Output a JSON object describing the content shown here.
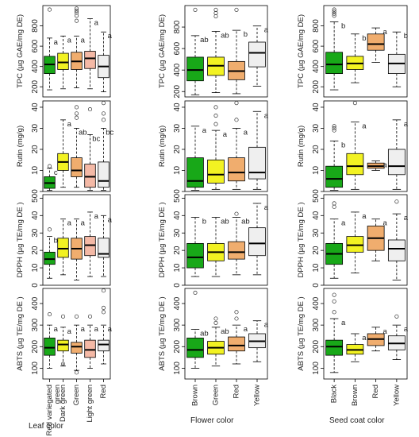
{
  "colors": {
    "green": "#18a818",
    "yellow": "#f2f222",
    "orange": "#f0ad6e",
    "pink": "#f4b9a6",
    "white": "#efefef"
  },
  "group_captions": [
    "Leaf color",
    "Flower color",
    "Seed coat color"
  ],
  "chart_data": [
    {
      "id": "leaf-tpc",
      "type": "box",
      "ylabel": "TPC (µg GAE/mg DE)",
      "ylim": [
        100,
        1000
      ],
      "yticks": [
        200,
        400,
        600,
        800
      ],
      "categories": [
        "Red variegated green",
        "Dark green",
        "Green",
        "Light green",
        "Red"
      ],
      "category_labels": [
        [
          "Red variegated",
          "green"
        ],
        [
          "Dark green"
        ],
        [
          "Green"
        ],
        [
          "Light green"
        ],
        [
          "Red"
        ]
      ],
      "box_colors": [
        "green",
        "yellow",
        "orange",
        "pink",
        "white"
      ],
      "boxes": [
        {
          "whislo": 170,
          "q1": 330,
          "med": 420,
          "q3": 500,
          "whishi": 680,
          "fliers": [
            960
          ],
          "letter": "a"
        },
        {
          "whislo": 180,
          "q1": 370,
          "med": 440,
          "q3": 530,
          "whishi": 700,
          "fliers": [],
          "letter": "a"
        },
        {
          "whislo": 190,
          "q1": 370,
          "med": 450,
          "q3": 540,
          "whishi": 700,
          "fliers": [
            850,
            900,
            930,
            950,
            970
          ],
          "letter": "a"
        },
        {
          "whislo": 180,
          "q1": 380,
          "med": 480,
          "q3": 550,
          "whishi": 870,
          "fliers": [],
          "letter": "a"
        },
        {
          "whislo": 150,
          "q1": 290,
          "med": 400,
          "q3": 510,
          "whishi": 740,
          "fliers": [],
          "letter": "a"
        }
      ]
    },
    {
      "id": "leaf-rutin",
      "type": "box",
      "ylabel": "Rutin (mg/g)",
      "ylim": [
        0,
        43
      ],
      "yticks": [
        0,
        10,
        20,
        30,
        40
      ],
      "categories": [
        "Red variegated green",
        "Dark green",
        "Green",
        "Light green",
        "Red"
      ],
      "box_colors": [
        "green",
        "yellow",
        "orange",
        "pink",
        "white"
      ],
      "boxes": [
        {
          "whislo": 0.5,
          "q1": 1.5,
          "med": 4,
          "q3": 7,
          "whishi": 11,
          "fliers": [
            12
          ],
          "letter": "c"
        },
        {
          "whislo": 2,
          "q1": 10,
          "med": 14,
          "q3": 18,
          "whishi": 34,
          "fliers": [],
          "letter": "a"
        },
        {
          "whislo": 2,
          "q1": 7,
          "med": 10,
          "q3": 16,
          "whishi": 30,
          "fliers": [
            35,
            37,
            40
          ],
          "letter": "ab"
        },
        {
          "whislo": 0.5,
          "q1": 2,
          "med": 7,
          "q3": 13,
          "whishi": 27,
          "fliers": [
            39
          ],
          "letter": "bc"
        },
        {
          "whislo": 0.5,
          "q1": 2,
          "med": 5,
          "q3": 14,
          "whishi": 30,
          "fliers": [
            34,
            37,
            42
          ],
          "letter": "bc"
        }
      ]
    },
    {
      "id": "leaf-dpph",
      "type": "box",
      "ylabel": "DPPH (µg TE/mg DE )",
      "ylim": [
        0,
        52
      ],
      "yticks": [
        0,
        10,
        20,
        30,
        40,
        50
      ],
      "categories": [
        "Red variegated green",
        "Dark green",
        "Green",
        "Light green",
        "Red"
      ],
      "box_colors": [
        "green",
        "yellow",
        "orange",
        "pink",
        "white"
      ],
      "boxes": [
        {
          "whislo": 4,
          "q1": 12,
          "med": 15,
          "q3": 19,
          "whishi": 28,
          "fliers": [
            32
          ],
          "letter": "b"
        },
        {
          "whislo": 6,
          "q1": 16,
          "med": 21,
          "q3": 27,
          "whishi": 38,
          "fliers": [],
          "letter": "a"
        },
        {
          "whislo": 3,
          "q1": 15,
          "med": 21,
          "q3": 27,
          "whishi": 38,
          "fliers": [],
          "letter": "a"
        },
        {
          "whislo": 5,
          "q1": 17,
          "med": 23,
          "q3": 28,
          "whishi": 42,
          "fliers": [],
          "letter": "a"
        },
        {
          "whislo": 5,
          "q1": 16,
          "med": 18,
          "q3": 27,
          "whishi": 40,
          "fliers": [],
          "letter": "a"
        }
      ]
    },
    {
      "id": "leaf-abts",
      "type": "box",
      "ylabel": "ABTS (µg TE/mg DE )",
      "ylim": [
        50,
        470
      ],
      "yticks": [
        100,
        200,
        300,
        400
      ],
      "categories": [
        "Red variegated green",
        "Dark green",
        "Green",
        "Light green",
        "Red"
      ],
      "box_colors": [
        "green",
        "yellow",
        "orange",
        "pink",
        "white"
      ],
      "boxes": [
        {
          "whislo": 100,
          "q1": 160,
          "med": 195,
          "q3": 240,
          "whishi": 300,
          "fliers": [
            350
          ],
          "letter": "a"
        },
        {
          "whislo": 110,
          "q1": 180,
          "med": 210,
          "q3": 230,
          "whishi": 290,
          "fliers": [
            120,
            340
          ],
          "letter": "a"
        },
        {
          "whislo": 90,
          "q1": 170,
          "med": 200,
          "q3": 220,
          "whishi": 300,
          "fliers": [
            80,
            340
          ],
          "letter": "a"
        },
        {
          "whislo": 100,
          "q1": 150,
          "med": 185,
          "q3": 230,
          "whishi": 300,
          "fliers": [
            340
          ],
          "letter": "a"
        },
        {
          "whislo": 120,
          "q1": 180,
          "med": 210,
          "q3": 230,
          "whishi": 300,
          "fliers": [
            360,
            380,
            460
          ],
          "letter": "a"
        }
      ]
    },
    {
      "id": "flower-tpc",
      "type": "box",
      "ylabel": "TPC (µg GAE/mg DE)",
      "ylim": [
        150,
        1000
      ],
      "yticks": [
        200,
        400,
        600,
        800
      ],
      "categories": [
        "Brown",
        "Green",
        "Red",
        "Yellow"
      ],
      "category_labels": [
        [
          "Brown"
        ],
        [
          "Green"
        ],
        [
          "Red"
        ],
        [
          "Yellow"
        ]
      ],
      "box_colors": [
        "green",
        "yellow",
        "orange",
        "white"
      ],
      "boxes": [
        {
          "whislo": 170,
          "q1": 300,
          "med": 400,
          "q3": 520,
          "whishi": 720,
          "fliers": [
            960
          ],
          "letter": "ab"
        },
        {
          "whislo": 190,
          "q1": 350,
          "med": 440,
          "q3": 520,
          "whishi": 760,
          "fliers": [
            900,
            930,
            960
          ],
          "letter": "ab"
        },
        {
          "whislo": 180,
          "q1": 310,
          "med": 390,
          "q3": 480,
          "whishi": 770,
          "fliers": [
            960
          ],
          "letter": "b"
        },
        {
          "whislo": 250,
          "q1": 430,
          "med": 560,
          "q3": 660,
          "whishi": 810,
          "fliers": [],
          "letter": "a"
        }
      ]
    },
    {
      "id": "flower-rutin",
      "type": "box",
      "ylabel": "Rutin (mg/g)",
      "ylim": [
        0,
        43
      ],
      "yticks": [
        0,
        10,
        20,
        30,
        40
      ],
      "categories": [
        "Brown",
        "Green",
        "Red",
        "Yellow"
      ],
      "box_colors": [
        "green",
        "yellow",
        "orange",
        "white"
      ],
      "boxes": [
        {
          "whislo": 0.5,
          "q1": 2,
          "med": 5,
          "q3": 16,
          "whishi": 31,
          "fliers": [],
          "letter": "a"
        },
        {
          "whislo": 1,
          "q1": 4,
          "med": 8,
          "q3": 15,
          "whishi": 29,
          "fliers": [
            32,
            36,
            40
          ],
          "letter": "a"
        },
        {
          "whislo": 1,
          "q1": 5,
          "med": 9,
          "q3": 16,
          "whishi": 30,
          "fliers": [
            34,
            42
          ],
          "letter": "a"
        },
        {
          "whislo": 1,
          "q1": 6,
          "med": 9,
          "q3": 21,
          "whishi": 38,
          "fliers": [],
          "letter": "a"
        }
      ]
    },
    {
      "id": "flower-dpph",
      "type": "box",
      "ylabel": "DPPH (µg TE/mg DE )",
      "ylim": [
        0,
        52
      ],
      "yticks": [
        0,
        10,
        20,
        30,
        40,
        50
      ],
      "categories": [
        "Brown",
        "Green",
        "Red",
        "Yellow"
      ],
      "box_colors": [
        "green",
        "yellow",
        "orange",
        "white"
      ],
      "boxes": [
        {
          "whislo": 5,
          "q1": 10,
          "med": 16,
          "q3": 24,
          "whishi": 39,
          "fliers": [],
          "letter": "b"
        },
        {
          "whislo": 5,
          "q1": 14,
          "med": 19,
          "q3": 24,
          "whishi": 39,
          "fliers": [],
          "letter": "ab"
        },
        {
          "whislo": 6,
          "q1": 15,
          "med": 19,
          "q3": 25,
          "whishi": 39,
          "fliers": [
            41
          ],
          "letter": "ab"
        },
        {
          "whislo": 6,
          "q1": 17,
          "med": 24,
          "q3": 33,
          "whishi": 47,
          "fliers": [],
          "letter": "a"
        }
      ]
    },
    {
      "id": "flower-abts",
      "type": "box",
      "ylabel": "ABTS (µg TE/mg DE )",
      "ylim": [
        50,
        470
      ],
      "yticks": [
        100,
        200,
        300,
        400
      ],
      "categories": [
        "Brown",
        "Green",
        "Red",
        "Yellow"
      ],
      "box_colors": [
        "green",
        "yellow",
        "orange",
        "white"
      ],
      "boxes": [
        {
          "whislo": 100,
          "q1": 150,
          "med": 185,
          "q3": 240,
          "whishi": 280,
          "fliers": [
            450
          ],
          "letter": "ab"
        },
        {
          "whislo": 110,
          "q1": 165,
          "med": 195,
          "q3": 225,
          "whishi": 290,
          "fliers": [
            310,
            330
          ],
          "letter": "ab"
        },
        {
          "whislo": 120,
          "q1": 180,
          "med": 205,
          "q3": 245,
          "whishi": 300,
          "fliers": [
            330,
            360
          ],
          "letter": "a"
        },
        {
          "whislo": 130,
          "q1": 195,
          "med": 225,
          "q3": 260,
          "whishi": 320,
          "fliers": [],
          "letter": "a"
        }
      ]
    },
    {
      "id": "seed-tpc",
      "type": "box",
      "ylabel": "TPC (µg GAE/mg DE)",
      "ylim": [
        100,
        1000
      ],
      "yticks": [
        200,
        400,
        600,
        800
      ],
      "categories": [
        "Black",
        "Brown",
        "Red",
        "Yellow"
      ],
      "category_labels": [
        [
          "Black"
        ],
        [
          "Brown"
        ],
        [
          "Red"
        ],
        [
          "Yellow"
        ]
      ],
      "box_colors": [
        "green",
        "yellow",
        "orange",
        "white"
      ],
      "boxes": [
        {
          "whislo": 170,
          "q1": 330,
          "med": 420,
          "q3": 540,
          "whishi": 840,
          "fliers": [
            900,
            920,
            940,
            960
          ],
          "letter": "b"
        },
        {
          "whislo": 240,
          "q1": 370,
          "med": 430,
          "q3": 500,
          "whishi": 720,
          "fliers": [],
          "letter": "b"
        },
        {
          "whislo": 440,
          "q1": 560,
          "med": 620,
          "q3": 720,
          "whishi": 780,
          "fliers": [],
          "letter": "a"
        },
        {
          "whislo": 200,
          "q1": 330,
          "med": 430,
          "q3": 520,
          "whishi": 740,
          "fliers": [],
          "letter": "b"
        }
      ]
    },
    {
      "id": "seed-rutin",
      "type": "box",
      "ylabel": "Rutin (mg/g)",
      "ylim": [
        0,
        43
      ],
      "yticks": [
        0,
        10,
        20,
        30,
        40
      ],
      "categories": [
        "Black",
        "Brown",
        "Red",
        "Yellow"
      ],
      "box_colors": [
        "green",
        "yellow",
        "orange",
        "white"
      ],
      "boxes": [
        {
          "whislo": 0.5,
          "q1": 2,
          "med": 6,
          "q3": 12,
          "whishi": 24,
          "fliers": [
            29,
            30,
            31
          ],
          "letter": "b"
        },
        {
          "whislo": 1,
          "q1": 8,
          "med": 12,
          "q3": 18,
          "whishi": 33,
          "fliers": [
            42
          ],
          "letter": "a"
        },
        {
          "whislo": 10,
          "q1": 11,
          "med": 12,
          "q3": 13.5,
          "whishi": 14.5,
          "fliers": [],
          "letter": "a"
        },
        {
          "whislo": 1,
          "q1": 8,
          "med": 12,
          "q3": 20,
          "whishi": 34,
          "fliers": [],
          "letter": "a"
        }
      ]
    },
    {
      "id": "seed-dpph",
      "type": "box",
      "ylabel": "DPPH (µg TE/mg DE )",
      "ylim": [
        0,
        52
      ],
      "yticks": [
        0,
        10,
        20,
        30,
        40,
        50
      ],
      "categories": [
        "Black",
        "Brown",
        "Red",
        "Yellow"
      ],
      "box_colors": [
        "green",
        "yellow",
        "orange",
        "white"
      ],
      "boxes": [
        {
          "whislo": 4,
          "q1": 12,
          "med": 18,
          "q3": 24,
          "whishi": 38,
          "fliers": [
            45,
            47
          ],
          "letter": "a"
        },
        {
          "whislo": 7,
          "q1": 19,
          "med": 23,
          "q3": 28,
          "whishi": 42,
          "fliers": [],
          "letter": "a"
        },
        {
          "whislo": 14,
          "q1": 20,
          "med": 27,
          "q3": 34,
          "whishi": 38,
          "fliers": [],
          "letter": "a"
        },
        {
          "whislo": 3,
          "q1": 14,
          "med": 21,
          "q3": 26,
          "whishi": 41,
          "fliers": [
            48
          ],
          "letter": "a"
        }
      ]
    },
    {
      "id": "seed-abts",
      "type": "box",
      "ylabel": "ABTS (µg TE/mg DE )",
      "ylim": [
        50,
        470
      ],
      "yticks": [
        100,
        200,
        300,
        400
      ],
      "categories": [
        "Black",
        "Brown",
        "Red",
        "Yellow"
      ],
      "box_colors": [
        "green",
        "yellow",
        "orange",
        "white"
      ],
      "boxes": [
        {
          "whislo": 80,
          "q1": 160,
          "med": 200,
          "q3": 230,
          "whishi": 330,
          "fliers": [
            360,
            410,
            440
          ],
          "letter": "a"
        },
        {
          "whislo": 130,
          "q1": 165,
          "med": 185,
          "q3": 210,
          "whishi": 260,
          "fliers": [],
          "letter": "a"
        },
        {
          "whislo": 180,
          "q1": 205,
          "med": 235,
          "q3": 260,
          "whishi": 290,
          "fliers": [],
          "letter": "a"
        },
        {
          "whislo": 140,
          "q1": 185,
          "med": 215,
          "q3": 250,
          "whishi": 300,
          "fliers": [
            340
          ],
          "letter": "a"
        }
      ]
    }
  ]
}
